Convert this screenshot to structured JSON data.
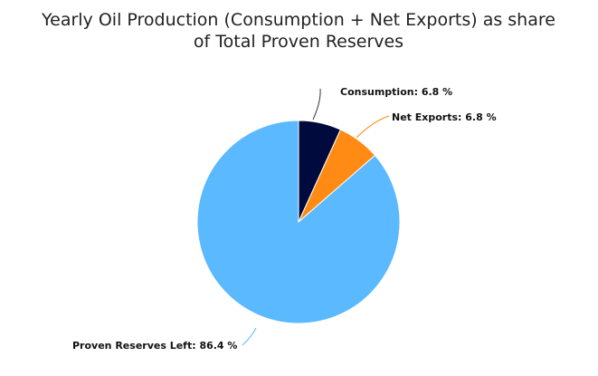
{
  "chart_data": {
    "type": "pie",
    "title_lines": [
      "Yearly Oil Production (Consumption + Net Exports) as share",
      "of Total Proven Reserves"
    ],
    "slices": [
      {
        "label": "Consumption",
        "value": 6.8,
        "display": "Consumption: 6.8 %",
        "color": "#000a3c"
      },
      {
        "label": "Net Exports",
        "value": 6.8,
        "display": "Net Exports: 6.8 %",
        "color": "#ff8a14"
      },
      {
        "label": "Proven Reserves Left",
        "value": 86.4,
        "display": "Proven Reserves Left: 86.4 %",
        "color": "#5ab9ff"
      }
    ],
    "start_angle": "12 o'clock",
    "direction": "clockwise",
    "legend": "none",
    "data_labels": "outside with connector lines"
  }
}
